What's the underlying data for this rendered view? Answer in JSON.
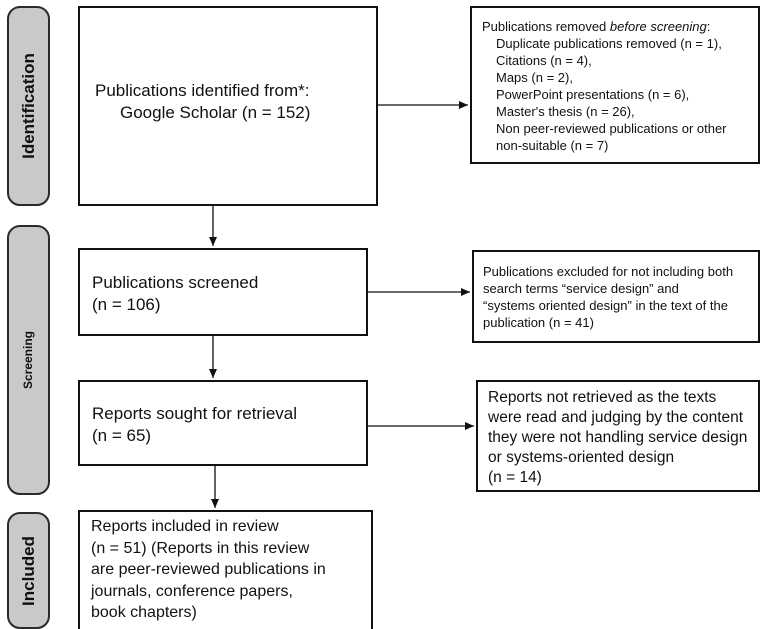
{
  "phases": {
    "identification": "Identification",
    "screening": "Screening",
    "included": "Included"
  },
  "boxes": {
    "identified": {
      "line1": "Publications identified from*:",
      "line2": "Google Scholar (n = 152)"
    },
    "removed": {
      "title_prefix": "Publications removed ",
      "title_emphasis": "before screening",
      "title_suffix": ":",
      "items": [
        "Duplicate publications removed (n = 1),",
        "Citations (n = 4),",
        "Maps (n = 2),",
        "PowerPoint presentations (n = 6),",
        "Master's thesis (n = 26),",
        "Non peer-reviewed publications or other",
        "non-suitable (n = 7)"
      ]
    },
    "screened": {
      "line1": "Publications screened",
      "line2": "(n = 106)"
    },
    "excluded": {
      "lines": [
        "Publications excluded for not including both",
        "search terms “service design” and",
        "“systems oriented design” in the text of the",
        "publication (n = 41)"
      ]
    },
    "sought": {
      "line1": "Reports sought for retrieval",
      "line2": "(n = 65)"
    },
    "not_retrieved": {
      "lines": [
        "Reports not retrieved as the texts",
        "were read and judging by the content",
        "they were not handling service design",
        "or systems-oriented design",
        "(n = 14)"
      ]
    },
    "included": {
      "lines": [
        "Reports included in review",
        "(n = 51) (Reports in this review",
        "are peer-reviewed publications in",
        "journals, conference papers,",
        "book chapters)"
      ]
    }
  }
}
